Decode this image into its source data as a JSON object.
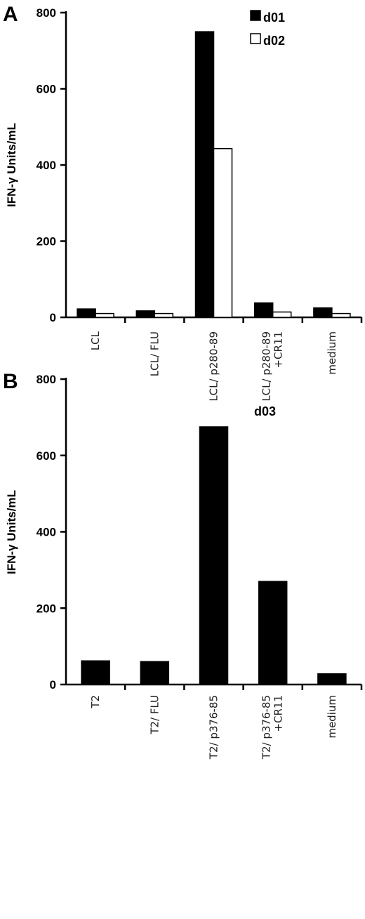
{
  "chart_data": [
    {
      "type": "bar",
      "panel": "A",
      "ylabel": "IFN-γ Units/mL",
      "ylim": [
        0,
        800
      ],
      "yticks": [
        0,
        200,
        400,
        600,
        800
      ],
      "categories": [
        [
          "LCL"
        ],
        [
          "LCL/ FLU"
        ],
        [
          "LCL/ p280-89"
        ],
        [
          "LCL/ p280-89",
          "+CR11"
        ],
        [
          "medium"
        ]
      ],
      "series": [
        {
          "name": "d01",
          "values": [
            22,
            17,
            750,
            38,
            25
          ],
          "color": "#000000",
          "fill": "solid"
        },
        {
          "name": "d02",
          "values": [
            10,
            10,
            443,
            14,
            10
          ],
          "color": "#000000",
          "fill": "open"
        }
      ],
      "legend_position": "top-right",
      "grid": false
    },
    {
      "type": "bar",
      "panel": "B",
      "ylabel": "IFN-γ Units/mL",
      "ylim": [
        0,
        800
      ],
      "yticks": [
        0,
        200,
        400,
        600,
        800
      ],
      "categories": [
        [
          "T2"
        ],
        [
          "T2/ FLU"
        ],
        [
          "T2/ p376-85"
        ],
        [
          "T2/ p376-85",
          "+CR11"
        ],
        [
          "medium"
        ]
      ],
      "series": [
        {
          "name": "d03",
          "values": [
            62,
            60,
            675,
            270,
            28
          ],
          "color": "#000000",
          "fill": "solid"
        }
      ],
      "annotation": "d03",
      "grid": false
    }
  ]
}
